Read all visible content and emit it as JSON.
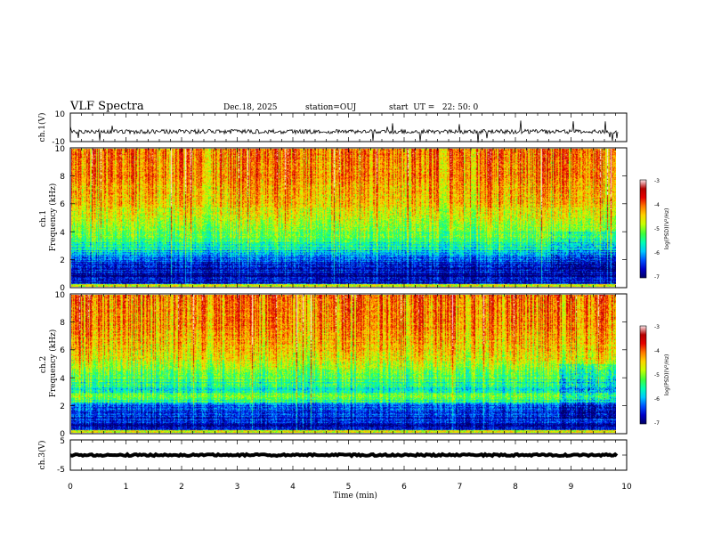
{
  "header": {
    "title": "VLF Spectra",
    "date": "Dec.18, 2025",
    "station": "station=OUJ",
    "start": "start  UT =   22: 50: 0"
  },
  "chart_data": [
    {
      "type": "line",
      "title": "ch.1(V)",
      "ylabel": "ch.1(V)",
      "ylim": [
        -10,
        10
      ],
      "ytick_labels": [
        "10",
        "-10"
      ],
      "xlim": [
        0,
        10
      ],
      "series": [
        {
          "name": "ch.1 waveform",
          "baseline": -3,
          "noise_amplitude": 1.5
        }
      ]
    },
    {
      "type": "heatmap",
      "title": "ch.1 spectrogram",
      "ylabel": "ch.1\nFrequency (kHz)",
      "ylim": [
        0,
        10
      ],
      "ytick_labels": [
        "0",
        "2",
        "4",
        "6",
        "8",
        "10"
      ],
      "xlim": [
        0,
        9.85
      ],
      "colorbar": {
        "label": "log(PSD)(V²/Hz)",
        "range": [
          -7,
          -3
        ],
        "tick_labels": [
          "-3",
          "-4",
          "-5",
          "-6",
          "-7"
        ]
      },
      "profile": {
        "freq_bands_kHz": [
          0,
          0.5,
          1,
          2,
          3,
          4,
          5,
          6,
          8,
          10
        ],
        "mean_log_psd": [
          -6.6,
          -6.8,
          -6.7,
          -6.3,
          -5.5,
          -5.1,
          -4.8,
          -4.5,
          -4.2,
          -4.1
        ]
      }
    },
    {
      "type": "heatmap",
      "title": "ch.2 spectrogram",
      "ylabel": "ch.2\nFrequency (kHz)",
      "ylim": [
        0,
        10
      ],
      "ytick_labels": [
        "0",
        "2",
        "4",
        "6",
        "8",
        "10"
      ],
      "xlim": [
        0,
        9.85
      ],
      "colorbar": {
        "label": "log(PSD)(V²/Hz)",
        "range": [
          -7,
          -3
        ],
        "tick_labels": [
          "-3",
          "-4",
          "-5",
          "-6",
          "-7"
        ]
      },
      "profile": {
        "freq_bands_kHz": [
          0,
          0.5,
          1,
          2,
          2.5,
          3,
          4,
          4.8,
          6,
          8,
          10
        ],
        "mean_log_psd": [
          -6.4,
          -6.7,
          -6.6,
          -6.1,
          -5.0,
          -5.5,
          -5.3,
          -4.9,
          -4.5,
          -4.2,
          -4.1
        ]
      }
    },
    {
      "type": "line",
      "title": "ch.3(V)",
      "ylabel": "ch.3(V)",
      "ylim": [
        -5,
        5
      ],
      "ytick_labels": [
        "5",
        "-5"
      ],
      "xlim": [
        0,
        10
      ],
      "xlabel": "Time (min)",
      "xtick_labels": [
        "0",
        "1",
        "2",
        "3",
        "4",
        "5",
        "6",
        "7",
        "8",
        "9",
        "10"
      ],
      "series": [
        {
          "name": "ch.3 waveform",
          "baseline": 0,
          "noise_amplitude": 0.3
        }
      ]
    }
  ],
  "colors": {
    "scale": [
      "#000064",
      "#0000c8",
      "#0050ff",
      "#00c8ff",
      "#00ffb4",
      "#3cff3c",
      "#c8ff00",
      "#ffd200",
      "#ff7800",
      "#e60000",
      "#b40000",
      "#fde6ea"
    ]
  }
}
